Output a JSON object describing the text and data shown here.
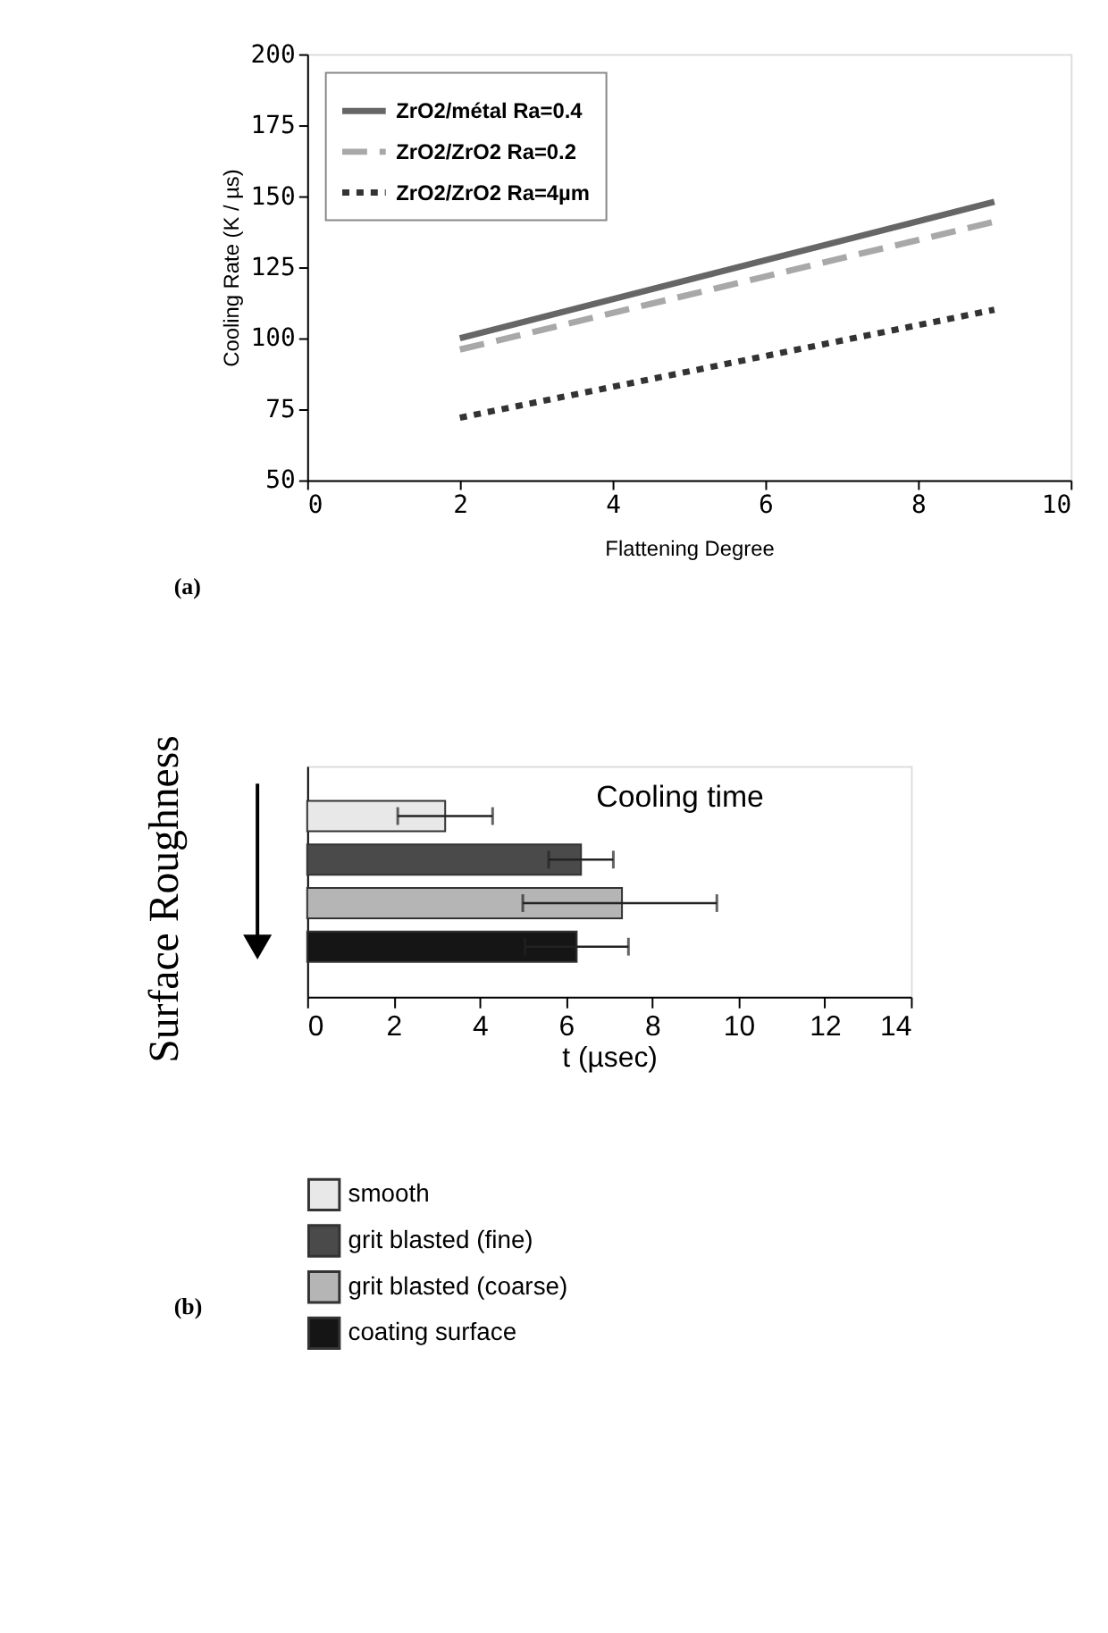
{
  "chart_data": [
    {
      "type": "line",
      "xlabel": "Flattening Degree",
      "ylabel": "Cooling Rate (K / µs)",
      "xlim": [
        0,
        10
      ],
      "xticks": [
        0,
        2,
        4,
        6,
        8,
        10
      ],
      "ylim": [
        50,
        200
      ],
      "yticks": [
        50,
        75,
        100,
        125,
        150,
        175,
        200
      ],
      "grid": false,
      "legend": "top left",
      "annotations": [
        "(a)"
      ],
      "x": [
        2,
        9
      ],
      "series": [
        {
          "name": "ZrO2/métal Ra=0.4",
          "color": "#666666",
          "line_style": "solid",
          "values": [
            100,
            148
          ]
        },
        {
          "name": "ZrO2/ZrO2 Ra=0.2",
          "color": "#a8a8a8",
          "line_style": "dashed",
          "values": [
            96,
            141
          ]
        },
        {
          "name": "ZrO2/ZrO2 Ra=4µm",
          "color": "#333333",
          "line_style": "dotted",
          "values": [
            72,
            110
          ]
        }
      ]
    },
    {
      "type": "bar",
      "orientation": "horizontal",
      "title": "Cooling time",
      "xlabel": "t (µsec)",
      "ylabel": "Surface Roughness",
      "xlim": [
        0,
        14
      ],
      "xticks": [
        0,
        2,
        4,
        6,
        8,
        10,
        12,
        14
      ],
      "tick_labels": "x",
      "grid": false,
      "legend": "bottom",
      "annotations": [
        "(b)"
      ],
      "categories": [
        null,
        null,
        null,
        null
      ],
      "series": [
        {
          "name": "smooth",
          "color": "#e8e8e8",
          "values": [
            3.2,
            null,
            null,
            null
          ],
          "errors": [
            1.1,
            null,
            null,
            null
          ]
        },
        {
          "name": "grit blasted (fine)",
          "color": "#4a4a4a",
          "values": [
            null,
            6.35,
            null,
            null
          ],
          "errors": [
            null,
            0.75,
            null,
            null
          ]
        },
        {
          "name": "grit blasted (coarse)",
          "color": "#b5b5b5",
          "values": [
            null,
            null,
            7.3,
            null
          ],
          "errors": [
            null,
            null,
            [
              5.0,
              9.5
            ],
            null
          ]
        },
        {
          "name": "coating surface",
          "color": "#151515",
          "values": [
            null,
            null,
            null,
            6.25
          ],
          "errors": [
            null,
            null,
            null,
            1.2
          ]
        }
      ]
    }
  ]
}
